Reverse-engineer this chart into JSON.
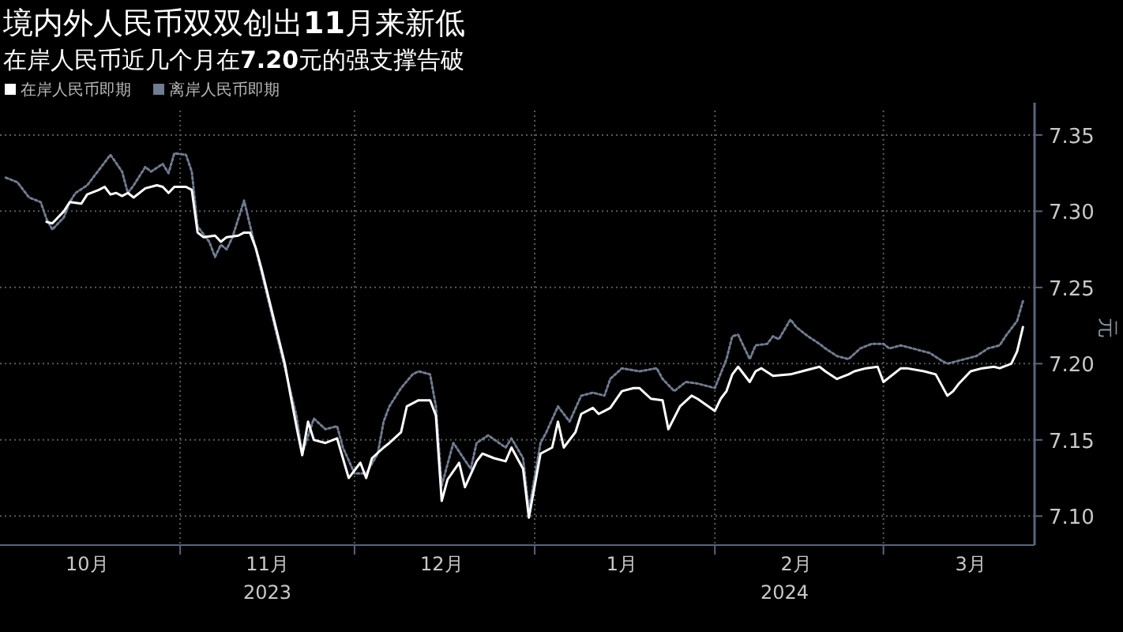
{
  "chart_data": {
    "type": "line",
    "title": "境内外人民币双双创出**11**月来新低",
    "subtitle": "在岸人民币近几个月在**7.20**元的强支撑告破",
    "ylabel": "元",
    "legend": "top left",
    "grid": true,
    "xlim": [
      "2023-10-01",
      "2024-03-27"
    ],
    "xticks": [
      {
        "value": "2023-10-16",
        "label": "10月"
      },
      {
        "value": "2023-11-01",
        "label": null
      },
      {
        "value": "2023-11-16",
        "label": "11月"
      },
      {
        "value": "2023-12-01",
        "label": null
      },
      {
        "value": "2023-12-16",
        "label": "12月"
      },
      {
        "value": "2024-01-01",
        "label": null
      },
      {
        "value": "2024-01-16",
        "label": "1月"
      },
      {
        "value": "2024-02-01",
        "label": null
      },
      {
        "value": "2024-02-15",
        "label": "2月"
      },
      {
        "value": "2024-03-01",
        "label": null
      },
      {
        "value": "2024-03-16",
        "label": "3月"
      }
    ],
    "annotations": [
      "2023",
      "2024"
    ],
    "ylim": [
      7.081,
      7.366
    ],
    "yticks": [
      {
        "value": 7.1,
        "label": "7.10"
      },
      7.15,
      {
        "value": 7.2,
        "label": "7.20"
      },
      7.25,
      {
        "value": 7.3,
        "label": "7.30"
      },
      7.35
    ],
    "series": [
      {
        "name": "在岸人民币即期",
        "color": "#ffffff",
        "line_style": "solid",
        "x": [
          "2023-10-09",
          "2023-10-10",
          "2023-10-12",
          "2023-10-13",
          "2023-10-15",
          "2023-10-16",
          "2023-10-18",
          "2023-10-19",
          "2023-10-20",
          "2023-10-21",
          "2023-10-22",
          "2023-10-23",
          "2023-10-24",
          "2023-10-26",
          "2023-10-28",
          "2023-10-29",
          "2023-10-30",
          "2023-10-31",
          "2023-11-02",
          "2023-11-03",
          "2023-11-04",
          "2023-11-05",
          "2023-11-07",
          "2023-11-08",
          "2023-11-09",
          "2023-11-11",
          "2023-11-12",
          "2023-11-13",
          "2023-11-14",
          "2023-11-15",
          "2023-11-19",
          "2023-11-20",
          "2023-11-21",
          "2023-11-22",
          "2023-11-23",
          "2023-11-24",
          "2023-11-26",
          "2023-11-28",
          "2023-11-29",
          "2023-11-30",
          "2023-12-02",
          "2023-12-03",
          "2023-12-04",
          "2023-12-06",
          "2023-12-07",
          "2023-12-09",
          "2023-12-10",
          "2023-12-12",
          "2023-12-14",
          "2023-12-15",
          "2023-12-16",
          "2023-12-17",
          "2023-12-19",
          "2023-12-20",
          "2023-12-22",
          "2023-12-23",
          "2023-12-25",
          "2023-12-27",
          "2023-12-28",
          "2023-12-30",
          "2023-12-31",
          "2024-01-02",
          "2024-01-04",
          "2024-01-05",
          "2024-01-06",
          "2024-01-08",
          "2024-01-09",
          "2024-01-11",
          "2024-01-12",
          "2024-01-14",
          "2024-01-16",
          "2024-01-18",
          "2024-01-19",
          "2024-01-21",
          "2024-01-23",
          "2024-01-24",
          "2024-01-26",
          "2024-01-28",
          "2024-01-29",
          "2024-02-01",
          "2024-02-02",
          "2024-02-03",
          "2024-02-04",
          "2024-02-05",
          "2024-02-07",
          "2024-02-08",
          "2024-02-09",
          "2024-02-11",
          "2024-02-14",
          "2024-02-16",
          "2024-02-19",
          "2024-02-20",
          "2024-02-22",
          "2024-02-24",
          "2024-02-25",
          "2024-02-27",
          "2024-02-29",
          "2024-03-01",
          "2024-03-04",
          "2024-03-05",
          "2024-03-08",
          "2024-03-10",
          "2024-03-12",
          "2024-03-13",
          "2024-03-14",
          "2024-03-16",
          "2024-03-18",
          "2024-03-20",
          "2024-03-21",
          "2024-03-23",
          "2024-03-24",
          "2024-03-25"
        ],
        "values": [
          7.293,
          7.292,
          7.3,
          7.306,
          7.305,
          7.311,
          7.314,
          7.316,
          7.311,
          7.312,
          7.31,
          7.312,
          7.309,
          7.315,
          7.317,
          7.316,
          7.312,
          7.316,
          7.316,
          7.314,
          7.286,
          7.283,
          7.284,
          7.28,
          7.283,
          7.284,
          7.286,
          7.286,
          7.276,
          7.262,
          7.2,
          7.179,
          7.159,
          7.14,
          7.162,
          7.15,
          7.148,
          7.151,
          7.138,
          7.125,
          7.135,
          7.125,
          7.138,
          7.145,
          7.148,
          7.155,
          7.172,
          7.176,
          7.176,
          7.166,
          7.11,
          7.124,
          7.135,
          7.119,
          7.136,
          7.141,
          7.138,
          7.136,
          7.145,
          7.131,
          7.099,
          7.141,
          7.145,
          7.162,
          7.145,
          7.155,
          7.167,
          7.171,
          7.167,
          7.171,
          7.182,
          7.184,
          7.184,
          7.177,
          7.176,
          7.157,
          7.172,
          7.179,
          7.177,
          7.169,
          7.177,
          7.182,
          7.193,
          7.198,
          7.188,
          7.195,
          7.197,
          7.192,
          7.193,
          7.195,
          7.198,
          7.195,
          7.19,
          7.193,
          7.195,
          7.197,
          7.198,
          7.188,
          7.197,
          7.197,
          7.195,
          7.193,
          7.179,
          7.182,
          7.187,
          7.195,
          7.197,
          7.198,
          7.197,
          7.2,
          7.208,
          7.224
        ]
      },
      {
        "name": "离岸人民币即期",
        "color": "#6f7c91",
        "line_style": "dotted",
        "x": [
          "2023-10-02",
          "2023-10-04",
          "2023-10-06",
          "2023-10-08",
          "2023-10-09",
          "2023-10-10",
          "2023-10-12",
          "2023-10-13",
          "2023-10-14",
          "2023-10-16",
          "2023-10-18",
          "2023-10-19",
          "2023-10-20",
          "2023-10-22",
          "2023-10-23",
          "2023-10-24",
          "2023-10-26",
          "2023-10-27",
          "2023-10-29",
          "2023-10-30",
          "2023-10-31",
          "2023-11-02",
          "2023-11-03",
          "2023-11-04",
          "2023-11-06",
          "2023-11-07",
          "2023-11-08",
          "2023-11-09",
          "2023-11-10",
          "2023-11-12",
          "2023-11-13",
          "2023-11-21",
          "2023-11-22",
          "2023-11-24",
          "2023-11-26",
          "2023-11-28",
          "2023-11-29",
          "2023-12-01",
          "2023-12-03",
          "2023-12-05",
          "2023-12-06",
          "2023-12-07",
          "2023-12-09",
          "2023-12-11",
          "2023-12-12",
          "2023-12-14",
          "2023-12-15",
          "2023-12-16",
          "2023-12-18",
          "2023-12-21",
          "2023-12-22",
          "2023-12-24",
          "2023-12-27",
          "2023-12-28",
          "2023-12-30",
          "2023-12-31",
          "2024-01-02",
          "2024-01-03",
          "2024-01-05",
          "2024-01-07",
          "2024-01-09",
          "2024-01-11",
          "2024-01-13",
          "2024-01-14",
          "2024-01-16",
          "2024-01-19",
          "2024-01-22",
          "2024-01-23",
          "2024-01-25",
          "2024-01-27",
          "2024-01-29",
          "2024-02-01",
          "2024-02-03",
          "2024-02-04",
          "2024-02-05",
          "2024-02-07",
          "2024-02-08",
          "2024-02-10",
          "2024-02-11",
          "2024-02-12",
          "2024-02-14",
          "2024-02-15",
          "2024-02-17",
          "2024-02-19",
          "2024-02-20",
          "2024-02-22",
          "2024-02-24",
          "2024-02-26",
          "2024-02-28",
          "2024-03-01",
          "2024-03-02",
          "2024-03-04",
          "2024-03-06",
          "2024-03-09",
          "2024-03-11",
          "2024-03-12",
          "2024-03-14",
          "2024-03-17",
          "2024-03-19",
          "2024-03-21",
          "2024-03-22",
          "2024-03-24",
          "2024-03-25"
        ],
        "values": [
          7.322,
          7.319,
          7.309,
          7.306,
          7.295,
          7.288,
          7.296,
          7.306,
          7.312,
          7.317,
          7.327,
          7.332,
          7.337,
          7.326,
          7.312,
          7.317,
          7.329,
          7.326,
          7.331,
          7.325,
          7.338,
          7.337,
          7.326,
          7.29,
          7.28,
          7.27,
          7.278,
          7.275,
          7.283,
          7.307,
          7.291,
          7.166,
          7.141,
          7.164,
          7.157,
          7.159,
          7.145,
          7.128,
          7.128,
          7.141,
          7.162,
          7.172,
          7.184,
          7.193,
          7.195,
          7.193,
          7.172,
          7.12,
          7.148,
          7.131,
          7.148,
          7.153,
          7.145,
          7.151,
          7.138,
          7.104,
          7.148,
          7.155,
          7.172,
          7.162,
          7.179,
          7.181,
          7.179,
          7.19,
          7.197,
          7.195,
          7.197,
          7.19,
          7.182,
          7.188,
          7.187,
          7.184,
          7.203,
          7.218,
          7.219,
          7.203,
          7.212,
          7.213,
          7.218,
          7.216,
          7.229,
          7.224,
          7.218,
          7.213,
          7.21,
          7.205,
          7.203,
          7.21,
          7.213,
          7.213,
          7.21,
          7.212,
          7.21,
          7.207,
          7.202,
          7.2,
          7.202,
          7.205,
          7.21,
          7.212,
          7.218,
          7.228,
          7.241
        ]
      }
    ]
  }
}
